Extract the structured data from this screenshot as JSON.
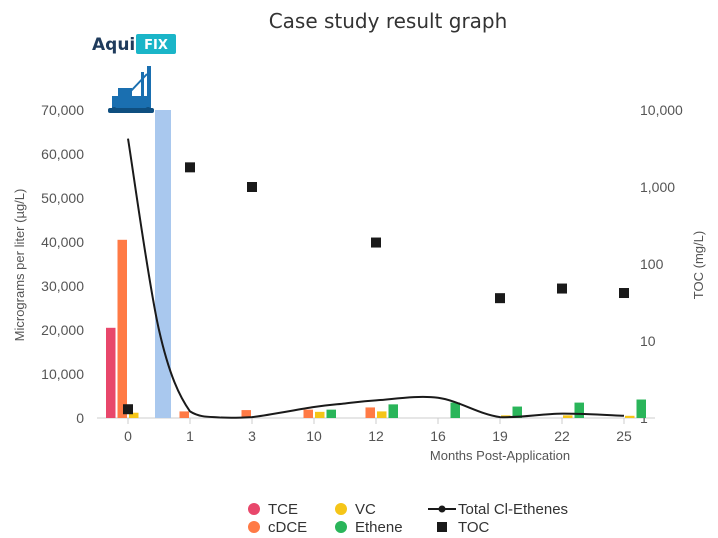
{
  "logo": {
    "part1": "Aqui",
    "part2": "FIX"
  },
  "colors": {
    "TCE": "#e8476b",
    "cDCE": "#ff7a45",
    "VC": "#f5c518",
    "Ethene": "#2ab55a",
    "TOC": "#1a1a1a",
    "Total": "#1a1a1a",
    "AquiFIX": "#a9c8ee",
    "logo_blue": "#1a6fb0",
    "logo_teal": "#1ab5c8"
  },
  "chart_data": {
    "type": "bar",
    "title": "Case study result graph",
    "xlabel": "Months Post-Application",
    "ylabel": "Micrograms per liter (µg/L)",
    "y2label": "TOC (mg/L)",
    "ylim": [
      0,
      70000
    ],
    "y2scale": "log",
    "y2lim": [
      1,
      10000
    ],
    "categories": [
      "0",
      "1",
      "3",
      "10",
      "12",
      "16",
      "19",
      "22",
      "25"
    ],
    "yticks": [
      "0",
      "10,000",
      "20,000",
      "30,000",
      "40,000",
      "50,000",
      "60,000",
      "70,000"
    ],
    "y2ticks": [
      "1",
      "10",
      "100",
      "1,000",
      "10,000"
    ],
    "application_bar": {
      "category": "0",
      "value": 70000
    },
    "series": [
      {
        "name": "TCE",
        "values": [
          20500,
          0,
          0,
          0,
          0,
          0,
          0,
          0,
          0
        ]
      },
      {
        "name": "cDCE",
        "values": [
          40500,
          1500,
          1800,
          1900,
          2400,
          0,
          0,
          0,
          0
        ]
      },
      {
        "name": "VC",
        "values": [
          1200,
          0,
          0,
          1400,
          1500,
          0,
          600,
          600,
          500
        ]
      },
      {
        "name": "Ethene",
        "values": [
          0,
          0,
          0,
          1900,
          3100,
          3500,
          2600,
          3500,
          4200
        ]
      },
      {
        "name": "Total Cl-Ethenes",
        "type": "line",
        "x": [
          0,
          0.5,
          1,
          1.5,
          2,
          3,
          3.5,
          4,
          5,
          6,
          7,
          8
        ],
        "values": [
          63500,
          20000,
          1500,
          100,
          200,
          2500,
          3300,
          4000,
          4600,
          200,
          1000,
          500
        ]
      },
      {
        "name": "TOC",
        "type": "scatter",
        "axis": "right",
        "values": [
          1.3,
          1800,
          1000,
          null,
          190,
          null,
          36,
          48,
          42
        ]
      }
    ],
    "legend": {
      "position": "bottom",
      "entries": [
        "TCE",
        "cDCE",
        "VC",
        "Ethene",
        "Total Cl-Ethenes",
        "TOC"
      ]
    }
  }
}
